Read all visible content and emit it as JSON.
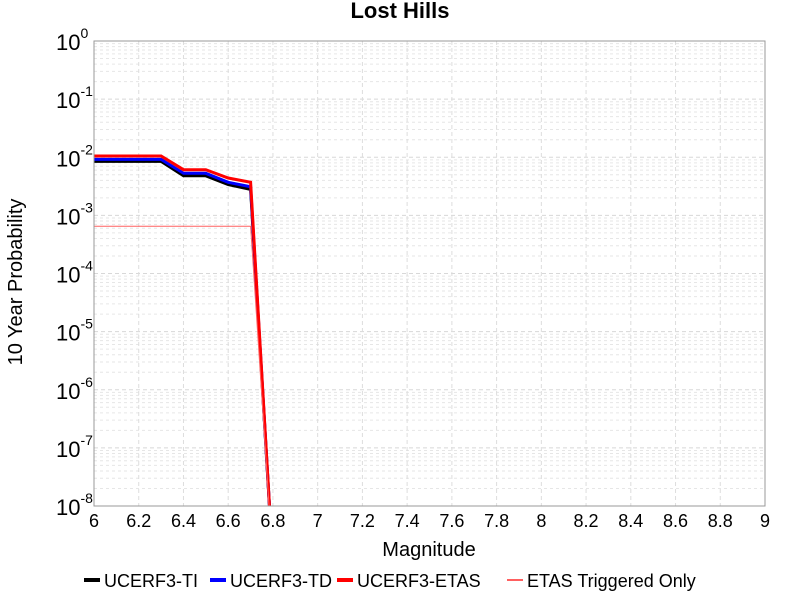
{
  "chart_data": {
    "type": "line",
    "title": "Lost Hills",
    "xlabel": "Magnitude",
    "ylabel": "10 Year Probability",
    "xlim": [
      6,
      9
    ],
    "ylim": [
      1e-08,
      1
    ],
    "yscale": "log",
    "grid": true,
    "legend_position": "bottom",
    "x_ticks": [
      "6",
      "6.2",
      "6.4",
      "6.6",
      "6.8",
      "7",
      "7.2",
      "7.4",
      "7.6",
      "7.8",
      "8",
      "8.2",
      "8.4",
      "8.6",
      "8.8",
      "9"
    ],
    "y_ticks": [
      {
        "base": "10",
        "exp": "0"
      },
      {
        "base": "10",
        "exp": "-1"
      },
      {
        "base": "10",
        "exp": "-2"
      },
      {
        "base": "10",
        "exp": "-3"
      },
      {
        "base": "10",
        "exp": "-4"
      },
      {
        "base": "10",
        "exp": "-5"
      },
      {
        "base": "10",
        "exp": "-6"
      },
      {
        "base": "10",
        "exp": "-7"
      },
      {
        "base": "10",
        "exp": "-8"
      }
    ],
    "series": [
      {
        "name": "UCERF3-TI",
        "color": "#000000",
        "line_width": 3,
        "x": [
          6.0,
          6.1,
          6.2,
          6.3,
          6.4,
          6.5,
          6.6,
          6.7,
          6.8
        ],
        "y": [
          0.0085,
          0.0085,
          0.0085,
          0.0085,
          0.0048,
          0.0048,
          0.0034,
          0.0028,
          0
        ]
      },
      {
        "name": "UCERF3-TD",
        "color": "#0000ff",
        "line_width": 3,
        "x": [
          6.0,
          6.1,
          6.2,
          6.3,
          6.4,
          6.5,
          6.6,
          6.7,
          6.8
        ],
        "y": [
          0.0092,
          0.0092,
          0.0092,
          0.0092,
          0.0053,
          0.0053,
          0.0037,
          0.0031,
          0
        ]
      },
      {
        "name": "UCERF3-ETAS",
        "color": "#ff0000",
        "line_width": 3,
        "x": [
          6.0,
          6.1,
          6.2,
          6.3,
          6.4,
          6.5,
          6.6,
          6.7,
          6.8
        ],
        "y": [
          0.0105,
          0.0105,
          0.0105,
          0.0105,
          0.0061,
          0.0061,
          0.0044,
          0.0037,
          0
        ]
      },
      {
        "name": "ETAS Triggered Only",
        "color": "#ff6060",
        "line_width": 1,
        "x": [
          6.0,
          6.1,
          6.2,
          6.3,
          6.4,
          6.5,
          6.6,
          6.7,
          6.8
        ],
        "y": [
          0.00065,
          0.00065,
          0.00065,
          0.00065,
          0.00065,
          0.00065,
          0.00065,
          0.00065,
          0
        ]
      }
    ]
  }
}
